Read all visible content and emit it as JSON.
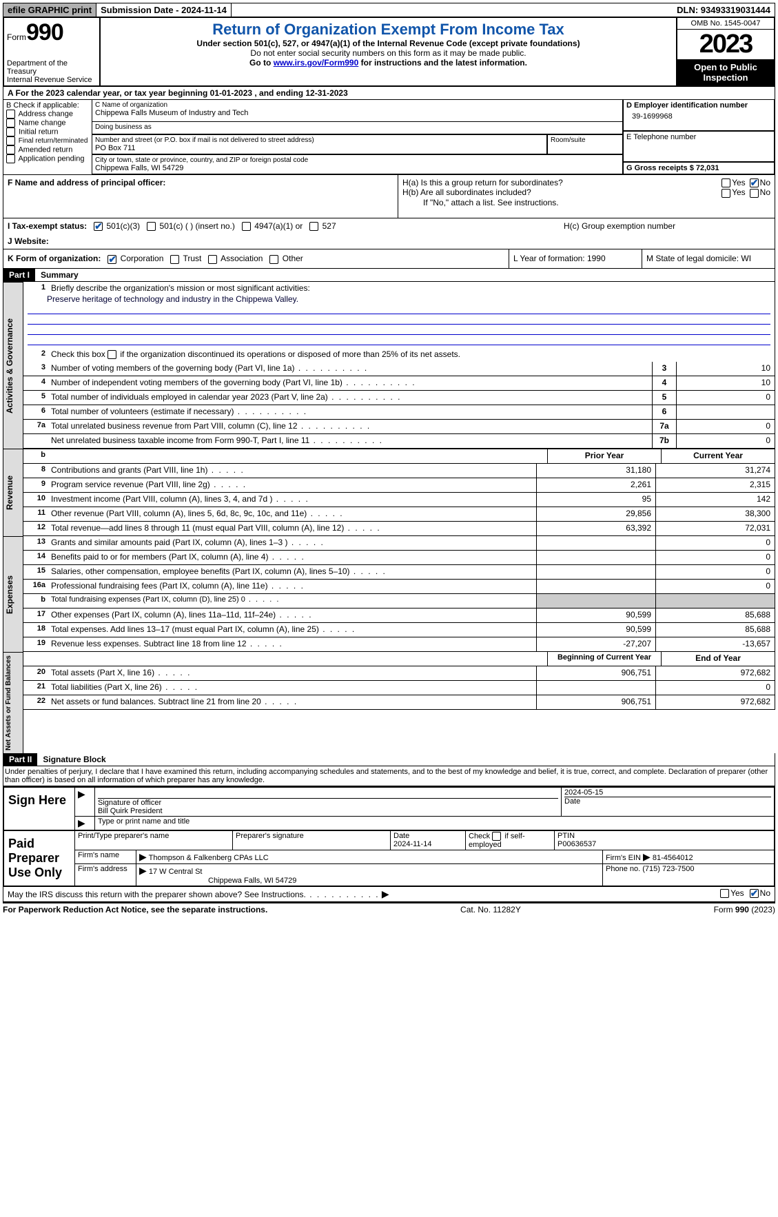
{
  "topbar": {
    "efile": "efile GRAPHIC print",
    "submission": "Submission Date - 2024-11-14",
    "dln": "DLN: 93493319031444"
  },
  "header": {
    "form_word": "Form",
    "form_num": "990",
    "dept": "Department of the Treasury",
    "irs": "Internal Revenue Service",
    "title": "Return of Organization Exempt From Income Tax",
    "sub1": "Under section 501(c), 527, or 4947(a)(1) of the Internal Revenue Code (except private foundations)",
    "sub2": "Do not enter social security numbers on this form as it may be made public.",
    "sub3_pre": "Go to ",
    "sub3_link": "www.irs.gov/Form990",
    "sub3_post": " for instructions and the latest information.",
    "omb": "OMB No. 1545-0047",
    "year": "2023",
    "inspect": "Open to Public Inspection"
  },
  "rowA": "A  For the 2023 calendar year, or tax year beginning 01-01-2023   , and ending 12-31-2023",
  "boxB": {
    "title": "B Check if applicable:",
    "items": [
      "Address change",
      "Name change",
      "Initial return",
      "Final return/terminated",
      "Amended return",
      "Application pending"
    ]
  },
  "boxC": {
    "label": "C Name of organization",
    "name": "Chippewa Falls Museum of Industry and Tech",
    "dba_label": "Doing business as",
    "addr_label": "Number and street (or P.O. box if mail is not delivered to street address)",
    "room_label": "Room/suite",
    "addr": "PO Box 711",
    "city_label": "City or town, state or province, country, and ZIP or foreign postal code",
    "city": "Chippewa Falls, WI  54729"
  },
  "boxD": {
    "label": "D Employer identification number",
    "val": "39-1699968"
  },
  "boxE": {
    "label": "E Telephone number"
  },
  "boxG": {
    "label": "G Gross receipts $ 72,031"
  },
  "boxF": {
    "label": "F  Name and address of principal officer:"
  },
  "boxH": {
    "a": "H(a)  Is this a group return for subordinates?",
    "b": "H(b)  Are all subordinates included?",
    "note": "If \"No,\" attach a list. See instructions.",
    "c": "H(c)  Group exemption number",
    "yes": "Yes",
    "no": "No"
  },
  "rowI": {
    "label": "I   Tax-exempt status:",
    "o1": "501(c)(3)",
    "o2": "501(c) (  ) (insert no.)",
    "o3": "4947(a)(1) or",
    "o4": "527"
  },
  "rowJ": {
    "label": "J   Website:"
  },
  "rowK": {
    "label": "K Form of organization:",
    "o1": "Corporation",
    "o2": "Trust",
    "o3": "Association",
    "o4": "Other",
    "L": "L Year of formation: 1990",
    "M": "M State of legal domicile: WI"
  },
  "part1": {
    "hdr": "Part I",
    "title": "Summary"
  },
  "gov": {
    "side": "Activities & Governance",
    "l1": "Briefly describe the organization's mission or most significant activities:",
    "l1v": "Preserve heritage of technology and industry in the Chippewa Valley.",
    "l2": "Check this box        if the organization discontinued its operations or disposed of more than 25% of its net assets.",
    "rows": [
      {
        "n": "3",
        "t": "Number of voting members of the governing body (Part VI, line 1a)",
        "b": "3",
        "v": "10"
      },
      {
        "n": "4",
        "t": "Number of independent voting members of the governing body (Part VI, line 1b)",
        "b": "4",
        "v": "10"
      },
      {
        "n": "5",
        "t": "Total number of individuals employed in calendar year 2023 (Part V, line 2a)",
        "b": "5",
        "v": "0"
      },
      {
        "n": "6",
        "t": "Total number of volunteers (estimate if necessary)",
        "b": "6",
        "v": ""
      },
      {
        "n": "7a",
        "t": "Total unrelated business revenue from Part VIII, column (C), line 12",
        "b": "7a",
        "v": "0"
      },
      {
        "n": "",
        "t": "Net unrelated business taxable income from Form 990-T, Part I, line 11",
        "b": "7b",
        "v": "0"
      }
    ]
  },
  "rev": {
    "side": "Revenue",
    "hdr_prior": "Prior Year",
    "hdr_curr": "Current Year",
    "rows": [
      {
        "n": "8",
        "t": "Contributions and grants (Part VIII, line 1h)",
        "p": "31,180",
        "c": "31,274"
      },
      {
        "n": "9",
        "t": "Program service revenue (Part VIII, line 2g)",
        "p": "2,261",
        "c": "2,315"
      },
      {
        "n": "10",
        "t": "Investment income (Part VIII, column (A), lines 3, 4, and 7d )",
        "p": "95",
        "c": "142"
      },
      {
        "n": "11",
        "t": "Other revenue (Part VIII, column (A), lines 5, 6d, 8c, 9c, 10c, and 11e)",
        "p": "29,856",
        "c": "38,300"
      },
      {
        "n": "12",
        "t": "Total revenue—add lines 8 through 11 (must equal Part VIII, column (A), line 12)",
        "p": "63,392",
        "c": "72,031"
      }
    ]
  },
  "exp": {
    "side": "Expenses",
    "rows": [
      {
        "n": "13",
        "t": "Grants and similar amounts paid (Part IX, column (A), lines 1–3 )",
        "p": "",
        "c": "0"
      },
      {
        "n": "14",
        "t": "Benefits paid to or for members (Part IX, column (A), line 4)",
        "p": "",
        "c": "0"
      },
      {
        "n": "15",
        "t": "Salaries, other compensation, employee benefits (Part IX, column (A), lines 5–10)",
        "p": "",
        "c": "0"
      },
      {
        "n": "16a",
        "t": "Professional fundraising fees (Part IX, column (A), line 11e)",
        "p": "",
        "c": "0"
      },
      {
        "n": "b",
        "t": "Total fundraising expenses (Part IX, column (D), line 25) 0",
        "p": "grey",
        "c": "grey",
        "small": true
      },
      {
        "n": "17",
        "t": "Other expenses (Part IX, column (A), lines 11a–11d, 11f–24e)",
        "p": "90,599",
        "c": "85,688"
      },
      {
        "n": "18",
        "t": "Total expenses. Add lines 13–17 (must equal Part IX, column (A), line 25)",
        "p": "90,599",
        "c": "85,688"
      },
      {
        "n": "19",
        "t": "Revenue less expenses. Subtract line 18 from line 12",
        "p": "-27,207",
        "c": "-13,657"
      }
    ]
  },
  "net": {
    "side": "Net Assets or Fund Balances",
    "hdr_beg": "Beginning of Current Year",
    "hdr_end": "End of Year",
    "rows": [
      {
        "n": "20",
        "t": "Total assets (Part X, line 16)",
        "p": "906,751",
        "c": "972,682"
      },
      {
        "n": "21",
        "t": "Total liabilities (Part X, line 26)",
        "p": "",
        "c": "0"
      },
      {
        "n": "22",
        "t": "Net assets or fund balances. Subtract line 21 from line 20",
        "p": "906,751",
        "c": "972,682"
      }
    ]
  },
  "part2": {
    "hdr": "Part II",
    "title": "Signature Block"
  },
  "penalty": "Under penalties of perjury, I declare that I have examined this return, including accompanying schedules and statements, and to the best of my knowledge and belief, it is true, correct, and complete. Declaration of preparer (other than officer) is based on all information of which preparer has any knowledge.",
  "sign": {
    "left": "Sign Here",
    "sig_label": "Signature of officer",
    "name": "Bill Quirk  President",
    "name_label": "Type or print name and title",
    "date": "2024-05-15",
    "date_label": "Date"
  },
  "prep": {
    "left": "Paid Preparer Use Only",
    "h1": "Print/Type preparer's name",
    "h2": "Preparer's signature",
    "h3": "Date",
    "h3v": "2024-11-14",
    "h4": "Check        if self-employed",
    "h5": "PTIN",
    "h5v": "P00636537",
    "firm_label": "Firm's name",
    "firm": "Thompson & Falkenberg CPAs LLC",
    "ein_label": "Firm's EIN",
    "ein": "81-4564012",
    "addr_label": "Firm's address",
    "addr1": "17 W Central St",
    "addr2": "Chippewa Falls, WI  54729",
    "phone_label": "Phone no.",
    "phone": "(715) 723-7500"
  },
  "discuss": "May the IRS discuss this return with the preparer shown above? See Instructions.",
  "footer": {
    "left": "For Paperwork Reduction Act Notice, see the separate instructions.",
    "mid": "Cat. No. 11282Y",
    "right_pre": "Form ",
    "right_b": "990",
    "right_post": " (2023)"
  }
}
